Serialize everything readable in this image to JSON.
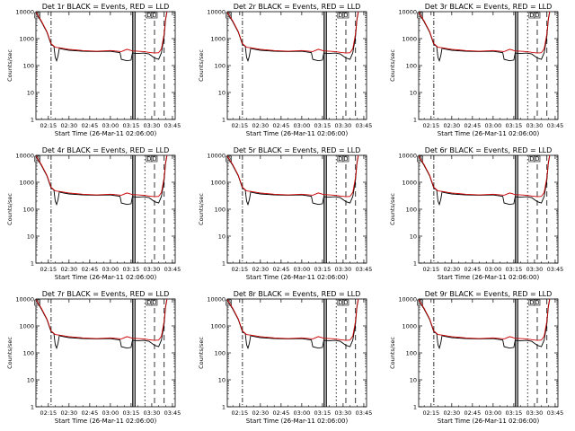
{
  "chart_data": [
    {
      "title": "Det 1r BLACK = Events, RED = LLD",
      "detector": "1r"
    },
    {
      "title": "Det 2r BLACK = Events, RED = LLD",
      "detector": "2r"
    },
    {
      "title": "Det 3r BLACK = Events, RED = LLD",
      "detector": "3r"
    },
    {
      "title": "Det 4r BLACK = Events, RED = LLD",
      "detector": "4r"
    },
    {
      "title": "Det 5r BLACK = Events, RED = LLD",
      "detector": "5r"
    },
    {
      "title": "Det 6r BLACK = Events, RED = LLD",
      "detector": "6r"
    },
    {
      "title": "Det 7r BLACK = Events, RED = LLD",
      "detector": "7r"
    },
    {
      "title": "Det 8r BLACK = Events, RED = LLD",
      "detector": "8r"
    },
    {
      "title": "Det 9r BLACK = Events, RED = LLD",
      "detector": "9r"
    }
  ],
  "shared": {
    "type": "line",
    "ylabel": "Counts/sec",
    "xlabel": "Start Time (26-Mar-11 02:06:00)",
    "y_scale": "log",
    "ylim": [
      1,
      10000
    ],
    "y_ticks": [
      "1",
      "10",
      "100",
      "1000",
      "10000"
    ],
    "x_tick_labels": [
      "02:15",
      "02:30",
      "02:45",
      "03:00",
      "03:15",
      "03:30",
      "03:45"
    ],
    "x_tick_minutes": [
      15,
      30,
      45,
      60,
      75,
      90,
      105
    ],
    "xlim_minutes": [
      6,
      107
    ],
    "series": [
      {
        "name": "Events",
        "color": "#000000",
        "t": [
          6,
          10,
          14,
          17,
          19,
          20,
          21,
          22,
          23,
          24,
          26,
          30,
          40,
          50,
          60,
          67,
          68,
          72,
          75,
          76,
          80,
          84,
          88,
          92,
          95,
          97,
          99,
          100,
          101
        ],
        "v": [
          9000,
          4200,
          1700,
          600,
          520,
          200,
          150,
          230,
          450,
          420,
          400,
          370,
          340,
          330,
          340,
          300,
          170,
          150,
          160,
          290,
          280,
          290,
          270,
          190,
          170,
          300,
          1200,
          5000,
          9500
        ]
      },
      {
        "name": "LLD",
        "color": "#cc0000",
        "t": [
          6,
          10,
          14,
          17,
          20,
          24,
          30,
          40,
          50,
          60,
          68,
          72,
          76,
          80,
          84,
          88,
          92,
          95,
          97,
          99,
          100,
          101
        ],
        "v": [
          9500,
          4500,
          1800,
          650,
          480,
          450,
          400,
          360,
          340,
          360,
          330,
          400,
          350,
          340,
          330,
          310,
          290,
          300,
          420,
          1500,
          5500,
          10000
        ]
      }
    ],
    "markers": [
      {
        "t": 17,
        "style": "dash-dot"
      },
      {
        "t": 76,
        "style": "solid"
      },
      {
        "t": 77,
        "style": "solid"
      },
      {
        "t": 78,
        "style": "solid"
      },
      {
        "t": 85,
        "style": "dotted"
      },
      {
        "t": 92,
        "style": "dashed"
      },
      {
        "t": 99,
        "style": "dashed"
      }
    ],
    "box_markers": [
      {
        "t": 7,
        "label": "D"
      },
      {
        "t": 88,
        "label": "D"
      },
      {
        "t": 92,
        "label": "D"
      }
    ],
    "grid": false
  }
}
